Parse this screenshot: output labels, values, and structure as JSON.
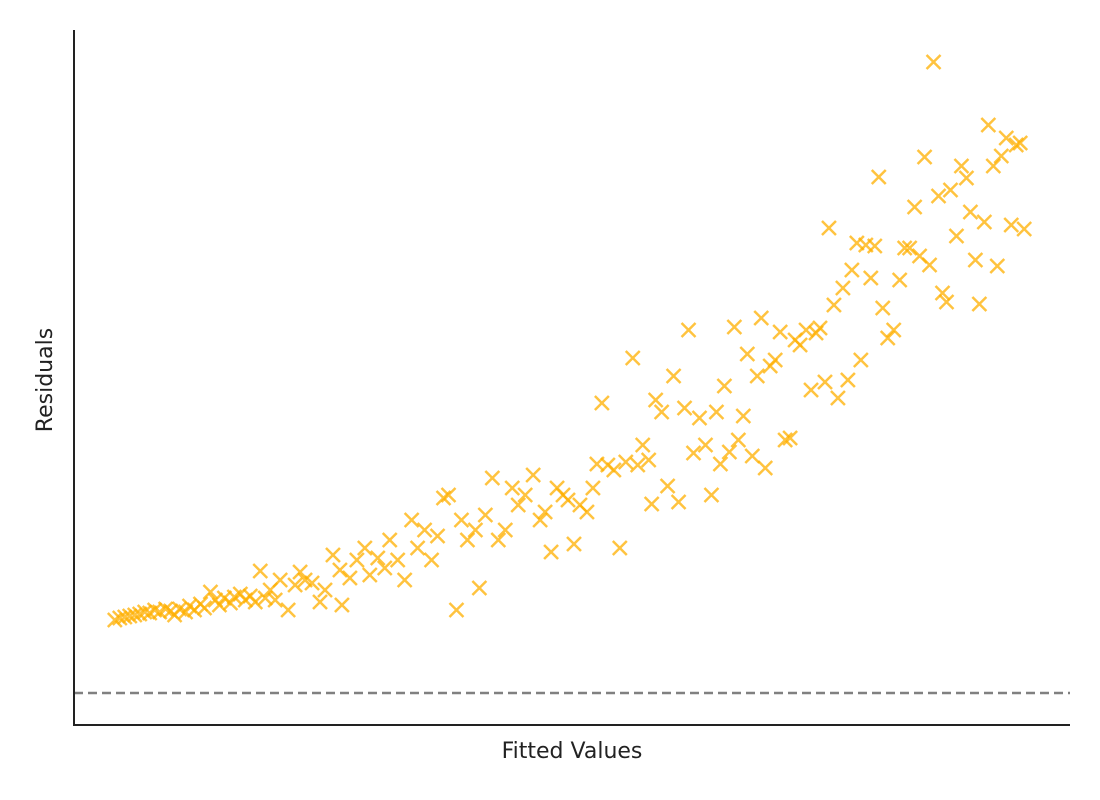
{
  "chart_data": {
    "type": "scatter",
    "xlabel": "Fitted Values",
    "ylabel": "Residuals",
    "xlim": [
      0,
      10
    ],
    "ylim": [
      -0.32,
      6.63
    ],
    "hline": 0,
    "hline_color": "#808080",
    "color": "#ffb000",
    "marker": "x",
    "x": [
      0.41,
      0.46,
      0.51,
      0.56,
      0.61,
      0.66,
      0.71,
      0.76,
      0.81,
      0.86,
      0.92,
      0.97,
      1.01,
      1.06,
      1.12,
      1.16,
      1.21,
      1.27,
      1.31,
      1.37,
      1.42,
      1.46,
      1.51,
      1.57,
      1.61,
      1.67,
      1.72,
      1.77,
      1.82,
      1.87,
      1.92,
      1.97,
      2.02,
      2.07,
      2.15,
      2.22,
      2.27,
      2.32,
      2.39,
      2.47,
      2.52,
      2.6,
      2.67,
      2.69,
      2.77,
      2.84,
      2.92,
      2.97,
      3.05,
      3.12,
      3.17,
      3.25,
      3.32,
      3.39,
      3.45,
      3.52,
      3.59,
      3.65,
      3.71,
      3.76,
      3.84,
      3.89,
      3.95,
      4.03,
      4.07,
      4.13,
      4.2,
      4.26,
      4.33,
      4.4,
      4.46,
      4.53,
      4.61,
      4.68,
      4.73,
      4.79,
      4.85,
      4.91,
      4.96,
      5.02,
      5.08,
      5.15,
      5.21,
      5.25,
      5.3,
      5.36,
      5.42,
      5.48,
      5.54,
      5.61,
      5.66,
      5.71,
      5.77,
      5.8,
      5.84,
      5.9,
      5.96,
      6.02,
      6.07,
      6.13,
      6.17,
      6.22,
      6.28,
      6.34,
      6.4,
      6.45,
      6.49,
      6.53,
      6.58,
      6.63,
      6.67,
      6.72,
      6.76,
      6.81,
      6.86,
      6.9,
      6.94,
      6.99,
      7.04,
      7.09,
      7.14,
      7.19,
      7.24,
      7.29,
      7.35,
      7.4,
      7.45,
      7.49,
      7.54,
      7.58,
      7.63,
      7.67,
      7.72,
      7.77,
      7.81,
      7.86,
      7.9,
      7.95,
      8.0,
      8.04,
      8.08,
      8.12,
      8.17,
      8.23,
      8.29,
      8.34,
      8.39,
      8.44,
      8.49,
      8.54,
      8.59,
      8.63,
      8.68,
      8.72,
      8.76,
      8.8,
      8.86,
      8.91,
      8.96,
      9.0,
      9.05,
      9.09,
      9.14,
      9.18,
      9.23,
      9.27,
      9.31,
      9.36,
      9.41,
      9.46,
      9.5,
      9.54
    ],
    "y": [
      0.73,
      0.75,
      0.76,
      0.77,
      0.78,
      0.79,
      0.81,
      0.8,
      0.83,
      0.81,
      0.84,
      0.82,
      0.78,
      0.84,
      0.81,
      0.87,
      0.83,
      0.89,
      0.85,
      1.01,
      0.93,
      0.88,
      0.95,
      0.9,
      0.96,
      0.99,
      0.93,
      0.97,
      0.91,
      1.22,
      0.95,
      1.03,
      0.93,
      1.13,
      0.83,
      1.08,
      1.21,
      1.13,
      1.1,
      0.91,
      1.03,
      1.38,
      1.23,
      0.88,
      1.15,
      1.33,
      1.45,
      1.18,
      1.35,
      1.25,
      1.53,
      1.33,
      1.13,
      1.73,
      1.45,
      1.63,
      1.33,
      1.57,
      1.95,
      1.98,
      0.83,
      1.73,
      1.53,
      1.63,
      1.05,
      1.78,
      2.15,
      1.53,
      1.63,
      2.05,
      1.88,
      1.98,
      2.18,
      1.73,
      1.81,
      1.41,
      2.05,
      1.98,
      1.93,
      1.49,
      1.88,
      1.81,
      2.05,
      2.29,
      2.9,
      2.28,
      2.23,
      1.45,
      2.31,
      3.35,
      2.28,
      2.48,
      2.33,
      1.89,
      2.93,
      2.81,
      2.07,
      3.17,
      1.91,
      2.85,
      3.63,
      2.4,
      2.75,
      2.48,
      1.98,
      2.81,
      2.29,
      3.07,
      2.41,
      3.66,
      2.53,
      2.77,
      3.39,
      2.37,
      3.17,
      3.75,
      2.25,
      3.27,
      3.33,
      3.61,
      2.53,
      2.55,
      3.53,
      3.48,
      3.63,
      3.03,
      3.6,
      3.65,
      3.11,
      4.65,
      3.88,
      2.95,
      4.05,
      3.13,
      4.23,
      4.5,
      3.33,
      4.48,
      4.15,
      4.47,
      5.16,
      3.85,
      3.55,
      3.63,
      4.13,
      4.45,
      4.45,
      4.86,
      4.37,
      5.36,
      4.28,
      6.31,
      4.97,
      4.0,
      3.91,
      5.03,
      4.57,
      5.27,
      5.15,
      4.81,
      4.33,
      3.89,
      4.71,
      5.68,
      5.27,
      4.27,
      5.37,
      5.55,
      4.68,
      5.48,
      5.5,
      4.64
    ]
  }
}
